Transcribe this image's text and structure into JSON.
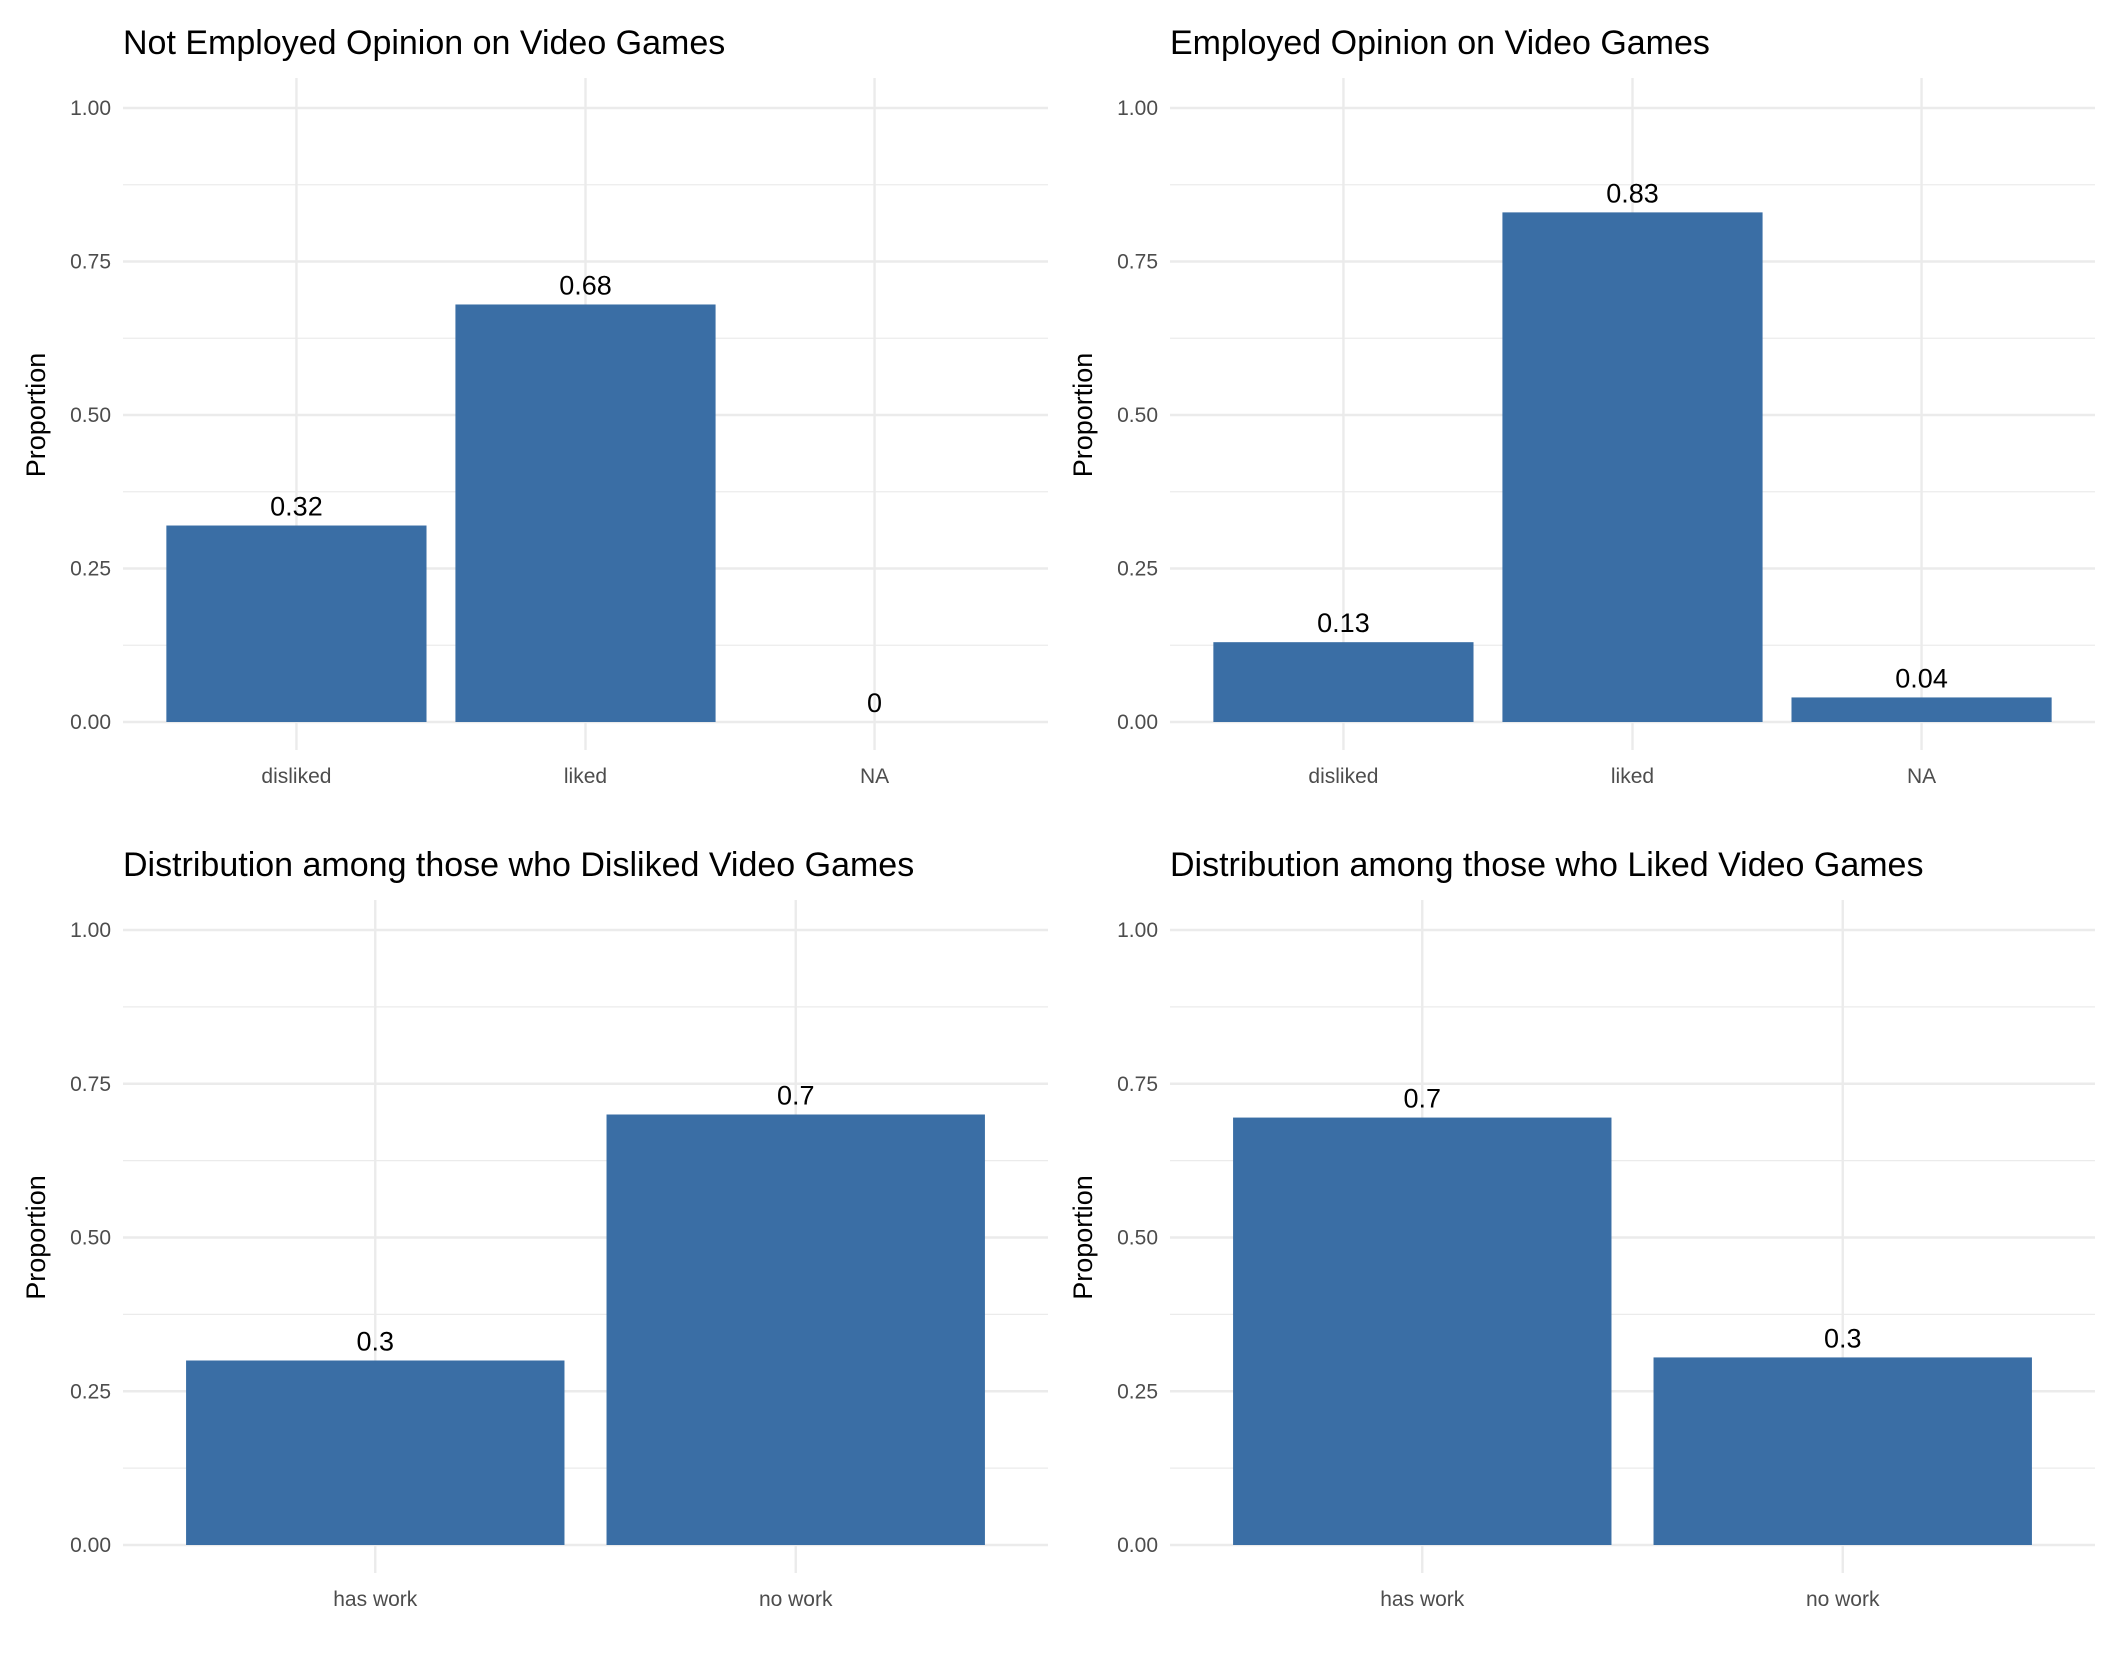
{
  "bar_color": "#3a6ea5",
  "grid_color": "#ebebeb",
  "chart_data": [
    {
      "type": "bar",
      "title": "Not Employed Opinion on Video Games",
      "xlabel": "",
      "ylabel": "Proportion",
      "categories": [
        "disliked",
        "liked",
        "NA"
      ],
      "values": [
        0.32,
        0.68,
        0
      ],
      "labels": [
        "0.32",
        "0.68",
        "0"
      ],
      "ylim": [
        0,
        1.0
      ],
      "yticks": [
        "0.00",
        "0.25",
        "0.50",
        "0.75",
        "1.00"
      ],
      "grid": true
    },
    {
      "type": "bar",
      "title": "Employed Opinion on Video Games",
      "xlabel": "",
      "ylabel": "Proportion",
      "categories": [
        "disliked",
        "liked",
        "NA"
      ],
      "values": [
        0.13,
        0.83,
        0.04
      ],
      "labels": [
        "0.13",
        "0.83",
        "0.04"
      ],
      "ylim": [
        0,
        1.0
      ],
      "yticks": [
        "0.00",
        "0.25",
        "0.50",
        "0.75",
        "1.00"
      ],
      "grid": true
    },
    {
      "type": "bar",
      "title": "Distribution among those who Disliked Video Games",
      "xlabel": "",
      "ylabel": "Proportion",
      "categories": [
        "has work",
        "no work"
      ],
      "values": [
        0.3,
        0.7
      ],
      "labels": [
        "0.3",
        "0.7"
      ],
      "ylim": [
        0,
        1.0
      ],
      "yticks": [
        "0.00",
        "0.25",
        "0.50",
        "0.75",
        "1.00"
      ],
      "grid": true
    },
    {
      "type": "bar",
      "title": "Distribution among those who Liked Video Games",
      "xlabel": "",
      "ylabel": "Proportion",
      "categories": [
        "has work",
        "no work"
      ],
      "values": [
        0.695,
        0.305
      ],
      "labels": [
        "0.7",
        "0.3"
      ],
      "ylim": [
        0,
        1.0
      ],
      "yticks": [
        "0.00",
        "0.25",
        "0.50",
        "0.75",
        "1.00"
      ],
      "grid": true
    }
  ]
}
